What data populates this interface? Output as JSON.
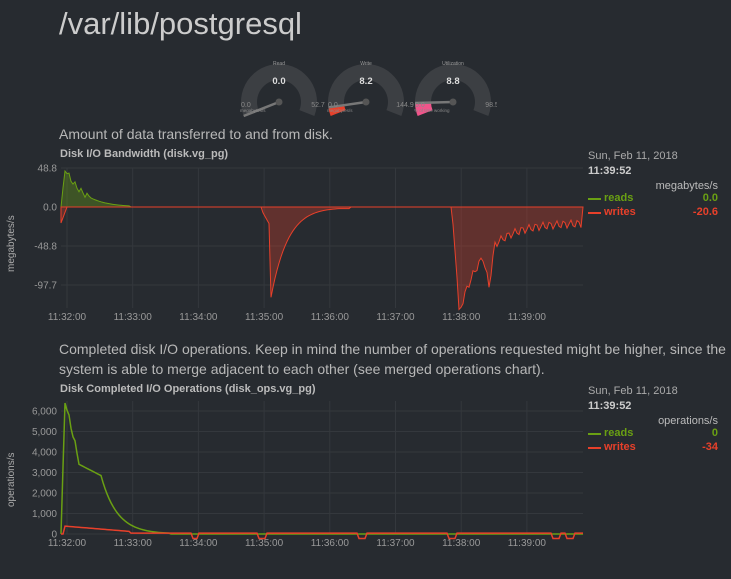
{
  "page": {
    "title": "/var/lib/postgresql"
  },
  "gauges": [
    {
      "label": "Read",
      "value": "0.0",
      "min": "0.0",
      "max": "52.7",
      "units": "megabytes/s",
      "fraction": 0.0,
      "color": "#3c3f43"
    },
    {
      "label": "Write",
      "value": "8.2",
      "min": "0.0",
      "max": "144.9",
      "units": "megabytes/s",
      "fraction": 0.06,
      "color": "#e8402a"
    },
    {
      "label": "Utilization",
      "value": "8.8",
      "min": "0.0",
      "max": "98.5",
      "units": "% of time working",
      "fraction": 0.09,
      "color": "#f0548a"
    }
  ],
  "section1": {
    "description": "Amount of data transferred to and from disk."
  },
  "chart1": {
    "title": "Disk I/O Bandwidth (disk.vg_pg)",
    "ylabel": "megabytes/s",
    "yticks": [
      "48.8",
      "0.0",
      "-48.8",
      "-97.7"
    ],
    "xticks": [
      "11:32:00",
      "11:33:00",
      "11:34:00",
      "11:35:00",
      "11:36:00",
      "11:37:00",
      "11:38:00",
      "11:39:00"
    ],
    "legend": {
      "date": "Sun, Feb 11, 2018",
      "time": "11:39:52",
      "units": "megabytes/s",
      "series": [
        {
          "name": "reads",
          "value": "0.0",
          "color": "#6aa013"
        },
        {
          "name": "writes",
          "value": "-20.6",
          "color": "#e8402a"
        }
      ]
    }
  },
  "section2": {
    "description": "Completed disk I/O operations. Keep in mind the number of operations requested might be higher, since the system is able to merge adjacent to each other (see merged operations chart)."
  },
  "chart2": {
    "title": "Disk Completed I/O Operations (disk_ops.vg_pg)",
    "ylabel": "operations/s",
    "yticks": [
      "6,000",
      "5,000",
      "4,000",
      "3,000",
      "2,000",
      "1,000",
      "0"
    ],
    "xticks": [
      "11:32:00",
      "11:33:00",
      "11:34:00",
      "11:35:00",
      "11:36:00",
      "11:37:00",
      "11:38:00",
      "11:39:00"
    ],
    "legend": {
      "date": "Sun, Feb 11, 2018",
      "time": "11:39:52",
      "units": "operations/s",
      "series": [
        {
          "name": "reads",
          "value": "0",
          "color": "#6aa013"
        },
        {
          "name": "writes",
          "value": "-34",
          "color": "#e8402a"
        }
      ]
    }
  }
}
